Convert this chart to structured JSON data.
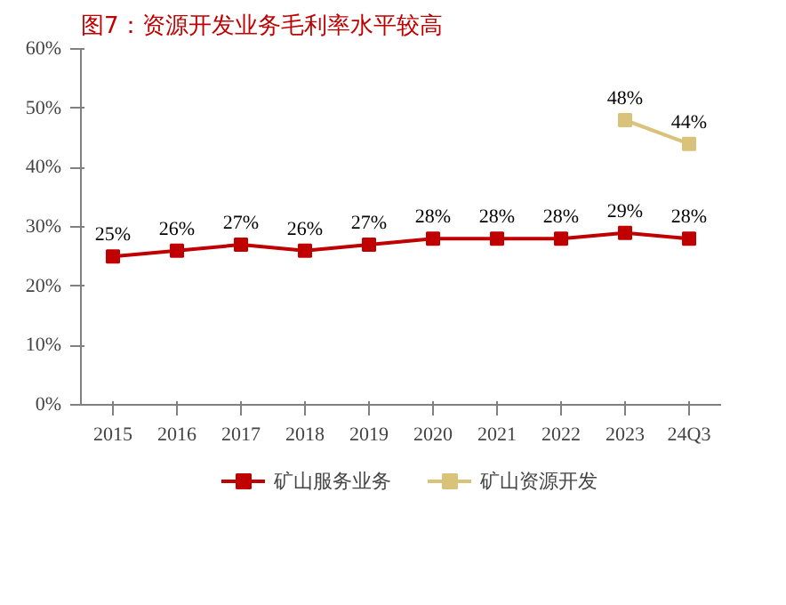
{
  "chart_data": {
    "type": "line",
    "title": "图7：资源开发业务毛利率水平较高",
    "categories": [
      "2015",
      "2016",
      "2017",
      "2018",
      "2019",
      "2020",
      "2021",
      "2022",
      "2023",
      "24Q3"
    ],
    "series": [
      {
        "name": "矿山服务业务",
        "color": "#c00000",
        "values": [
          25,
          26,
          27,
          26,
          27,
          28,
          28,
          28,
          29,
          28
        ],
        "value_labels": [
          "25%",
          "26%",
          "27%",
          "26%",
          "27%",
          "28%",
          "28%",
          "28%",
          "29%",
          "28%"
        ]
      },
      {
        "name": "矿山资源开发",
        "color": "#d9c27a",
        "values": [
          null,
          null,
          null,
          null,
          null,
          null,
          null,
          null,
          48,
          44
        ],
        "value_labels": [
          null,
          null,
          null,
          null,
          null,
          null,
          null,
          null,
          "48%",
          "44%"
        ]
      }
    ],
    "ylim": [
      0,
      60
    ],
    "yticks": [
      {
        "value": 0,
        "label": "0%"
      },
      {
        "value": 10,
        "label": "10%"
      },
      {
        "value": 20,
        "label": "20%"
      },
      {
        "value": 30,
        "label": "30%"
      },
      {
        "value": 40,
        "label": "40%"
      },
      {
        "value": 50,
        "label": "50%"
      },
      {
        "value": 60,
        "label": "60%"
      }
    ],
    "grid": false,
    "legend": "bottom",
    "marker": "square",
    "line_style": "solid"
  }
}
